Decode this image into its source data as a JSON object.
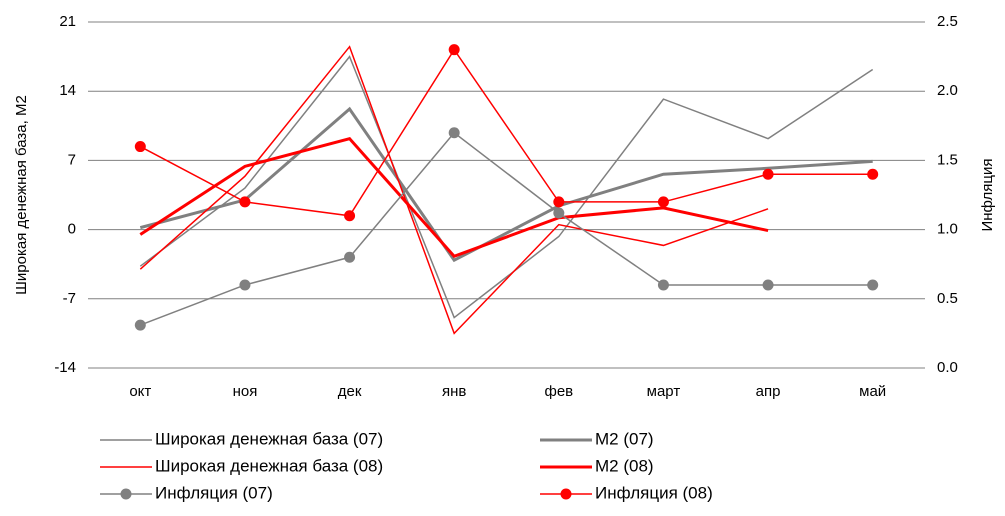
{
  "chart_data": {
    "type": "line",
    "y_label": "Широкая денежная база, М2",
    "y2_label": "Инфляция",
    "categories": [
      "окт",
      "ноя",
      "дек",
      "янв",
      "фев",
      "март",
      "апр",
      "май"
    ],
    "ylim": [
      -14,
      21
    ],
    "yticks": [
      21,
      14,
      7,
      0,
      -7,
      -14
    ],
    "y2lim": [
      0,
      2.5
    ],
    "y2ticks": [
      2.5,
      {
        "value": 2,
        "label": "2.0"
      },
      1.5,
      {
        "value": 1,
        "label": "1.0"
      },
      0.5,
      {
        "value": 0,
        "label": "0.0"
      }
    ],
    "grid": true,
    "series": [
      {
        "name": "Широкая денежная база (07)",
        "color": "#808080",
        "width": 1.5,
        "marker": false,
        "values": [
          -3.7,
          4.2,
          17.5,
          -8.9,
          -0.7,
          13.2,
          9.2,
          16.2
        ]
      },
      {
        "name": "М2 (07)",
        "color": "#808080",
        "width": 3,
        "marker": false,
        "values": [
          0.2,
          3.0,
          12.2,
          -3.1,
          2.4,
          5.6,
          6.2,
          6.9
        ]
      },
      {
        "name": "Широкая денежная база (08)",
        "color": "#ff0000",
        "width": 1.5,
        "marker": false,
        "values": [
          -4.0,
          5.4,
          18.5,
          -10.5,
          0.5,
          -1.6,
          2.1,
          null
        ]
      },
      {
        "name": "М2 (08)",
        "color": "#ff0000",
        "width": 3,
        "marker": false,
        "values": [
          -0.5,
          6.4,
          9.2,
          -2.7,
          1.2,
          2.2,
          -0.1,
          null
        ]
      },
      {
        "name": "Инфляция (07)",
        "color": "#808080",
        "width": 1.5,
        "marker": true,
        "axis": "y2",
        "values": [
          0.31,
          0.6,
          0.8,
          1.7,
          1.12,
          0.6,
          0.6,
          0.6
        ]
      },
      {
        "name": "Инфляция (08)",
        "color": "#ff0000",
        "width": 1.5,
        "marker": true,
        "axis": "y2",
        "values": [
          1.6,
          1.2,
          1.1,
          2.3,
          1.2,
          1.2,
          1.4,
          1.4
        ]
      }
    ]
  }
}
